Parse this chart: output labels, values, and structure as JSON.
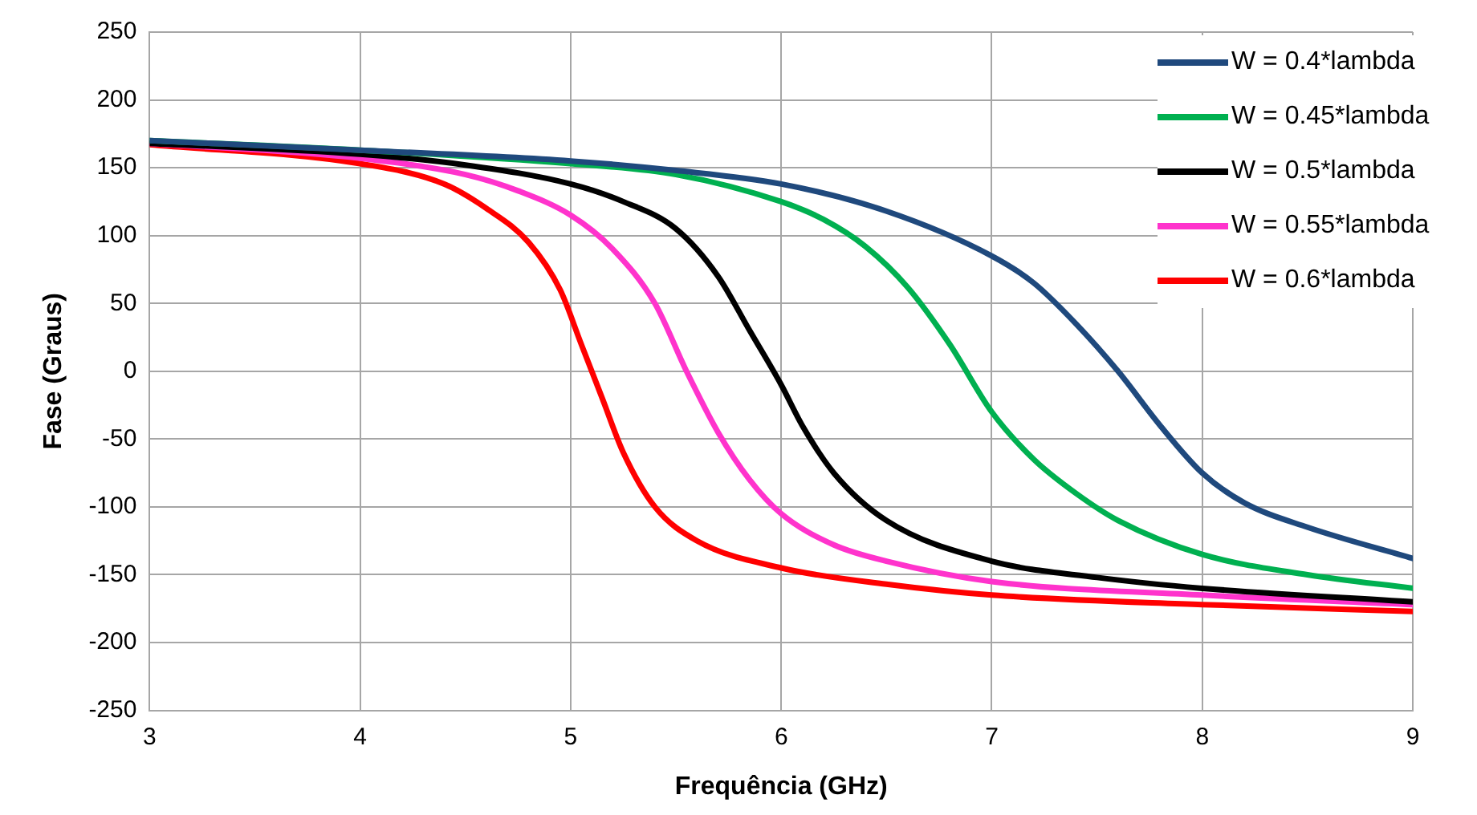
{
  "chart_data": {
    "type": "line",
    "xlabel": "Frequência (GHz)",
    "ylabel": "Fase (Graus)",
    "xlim": [
      3,
      9
    ],
    "xticks": [
      3,
      4,
      5,
      6,
      7,
      8,
      9
    ],
    "ylim": [
      -250,
      250
    ],
    "yticks": [
      -250,
      -200,
      -150,
      -100,
      -50,
      0,
      50,
      100,
      150,
      200,
      250
    ],
    "grid": true,
    "legend": "top right",
    "marker": "none",
    "line_style": "solid",
    "series": [
      {
        "name": "W = 0.4*lambda",
        "color": "#1f497d",
        "x": [
          3,
          4,
          5,
          5.5,
          6,
          6.5,
          7,
          7.2,
          7.4,
          7.6,
          7.8,
          8,
          8.2,
          8.5,
          9
        ],
        "values": [
          170,
          163,
          155,
          148,
          138,
          118,
          85,
          65,
          35,
          0,
          -40,
          -75,
          -97,
          -115,
          -138
        ]
      },
      {
        "name": "W = 0.45*lambda",
        "color": "#00b050",
        "x": [
          3,
          4,
          5,
          5.5,
          6,
          6.2,
          6.4,
          6.6,
          6.8,
          7,
          7.2,
          7.4,
          7.6,
          8,
          8.5,
          9
        ],
        "values": [
          170,
          163,
          153,
          145,
          125,
          112,
          92,
          62,
          20,
          -30,
          -65,
          -90,
          -110,
          -135,
          -150,
          -160
        ]
      },
      {
        "name": "W = 0.5*lambda",
        "color": "#000000",
        "x": [
          3,
          4,
          4.5,
          5,
          5.25,
          5.5,
          5.7,
          5.85,
          6,
          6.1,
          6.25,
          6.5,
          7,
          7.5,
          8,
          9
        ],
        "values": [
          168,
          160,
          152,
          138,
          125,
          105,
          70,
          30,
          -10,
          -40,
          -75,
          -110,
          -140,
          -152,
          -160,
          -170
        ]
      },
      {
        "name": "W = 0.55*lambda",
        "color": "#ff33cc",
        "x": [
          3,
          4,
          4.5,
          4.75,
          5,
          5.2,
          5.4,
          5.55,
          5.7,
          5.85,
          6,
          6.25,
          6.5,
          7,
          8,
          9
        ],
        "values": [
          168,
          157,
          145,
          133,
          115,
          90,
          50,
          0,
          -45,
          -80,
          -105,
          -128,
          -140,
          -155,
          -165,
          -172
        ]
      },
      {
        "name": "W = 0.6*lambda",
        "color": "#ff0000",
        "x": [
          3,
          4,
          4.4,
          4.6,
          4.8,
          4.95,
          5.05,
          5.15,
          5.25,
          5.4,
          5.6,
          6,
          6.5,
          7,
          8,
          9
        ],
        "values": [
          167,
          153,
          138,
          120,
          95,
          60,
          20,
          -20,
          -60,
          -100,
          -125,
          -145,
          -157,
          -165,
          -172,
          -177
        ]
      }
    ]
  }
}
